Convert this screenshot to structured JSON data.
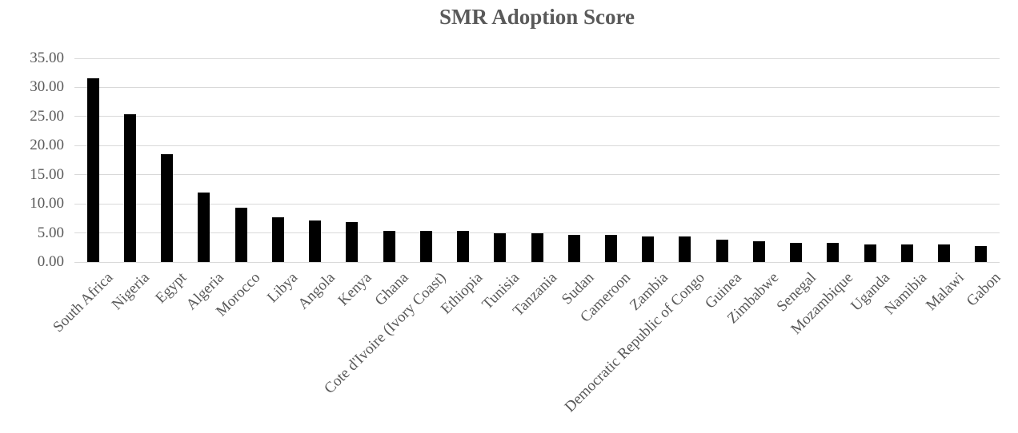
{
  "chart_data": {
    "type": "bar",
    "title": "SMR Adoption Score",
    "categories": [
      "South Africa",
      "Nigeria",
      "Egypt",
      "Algeria",
      "Morocco",
      "Libya",
      "Angola",
      "Kenya",
      "Ghana",
      "Cote d'Ivoire (Ivory Coast)",
      "Ethiopia",
      "Tunisia",
      "Tanzania",
      "Sudan",
      "Cameroon",
      "Zambia",
      "Democratic Republic of Congo",
      "Guinea",
      "Zimbabwe",
      "Senegal",
      "Mozambique",
      "Uganda",
      "Namibia",
      "Malawi",
      "Gabon"
    ],
    "values": [
      31.5,
      25.4,
      18.5,
      11.9,
      9.3,
      7.7,
      7.1,
      6.9,
      5.3,
      5.3,
      5.3,
      5.0,
      5.0,
      4.7,
      4.7,
      4.4,
      4.4,
      3.8,
      3.6,
      3.3,
      3.3,
      3.0,
      3.0,
      3.0,
      2.8
    ],
    "xlabel": "",
    "ylabel": "",
    "ylim": [
      0,
      35
    ],
    "ytick_step": 5,
    "ytick_labels": [
      "0.00",
      "5.00",
      "10.00",
      "15.00",
      "20.00",
      "25.00",
      "30.00",
      "35.00"
    ],
    "grid": true,
    "legend": false,
    "bar_color": "#000000",
    "gridline_color": "#d9d9d9",
    "text_color": "#595959"
  }
}
